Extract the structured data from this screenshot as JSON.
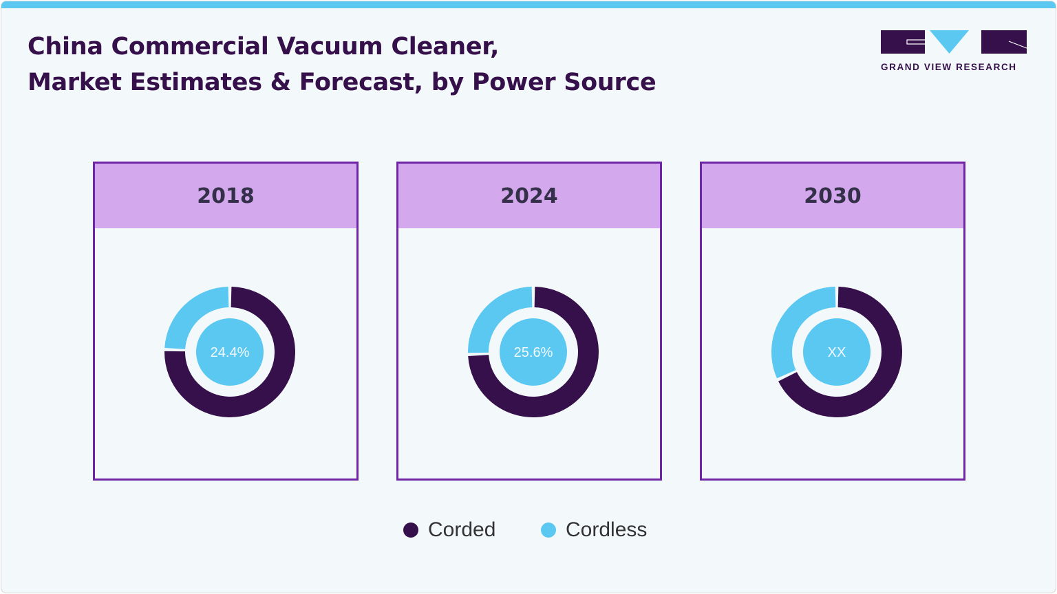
{
  "header": {
    "title_line1": "China Commercial Vacuum Cleaner,",
    "title_line2": "Market Estimates & Forecast, by Power Source",
    "logo_text": "GRAND VIEW RESEARCH"
  },
  "colors": {
    "corded": "#35104a",
    "cordless": "#5bc8f1",
    "panel_border": "#7024a6",
    "panel_header": "#d3a8ec"
  },
  "chart_data": {
    "type": "pie",
    "title": "China Commercial Vacuum Cleaner, Market Estimates & Forecast, by Power Source",
    "legend": [
      "Corded",
      "Cordless"
    ],
    "legend_placement": "bottom",
    "charts": [
      {
        "year": "2018",
        "center_label": "24.4%",
        "series": [
          {
            "name": "Corded",
            "value": 75.6
          },
          {
            "name": "Cordless",
            "value": 24.4
          }
        ]
      },
      {
        "year": "2024",
        "center_label": "25.6%",
        "series": [
          {
            "name": "Corded",
            "value": 74.4
          },
          {
            "name": "Cordless",
            "value": 25.6
          }
        ]
      },
      {
        "year": "2030",
        "center_label": "XX",
        "series": [
          {
            "name": "Corded",
            "value": 68
          },
          {
            "name": "Cordless",
            "value": 32
          }
        ]
      }
    ]
  }
}
